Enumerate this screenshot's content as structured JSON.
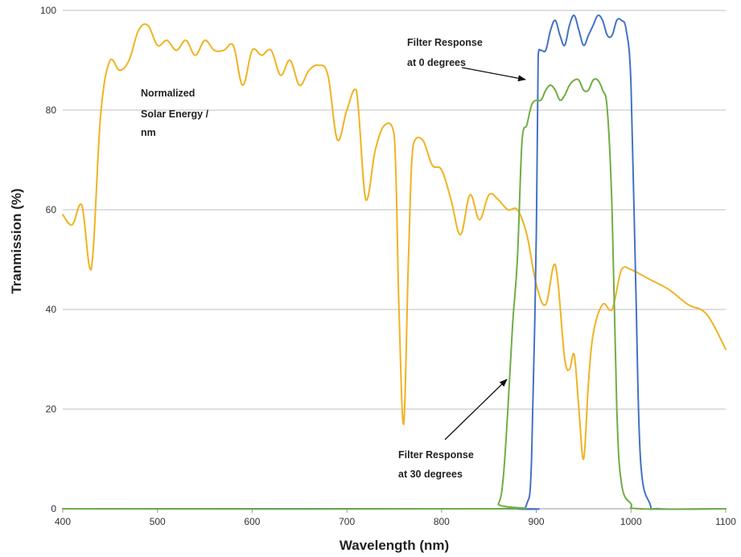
{
  "chart_data": {
    "type": "line",
    "title": "",
    "xlabel": "Wavelength (nm)",
    "ylabel": "Tranmission  (%)",
    "xlim": [
      400,
      1100
    ],
    "ylim": [
      0,
      100
    ],
    "xticks": [
      400,
      500,
      600,
      700,
      800,
      900,
      1000,
      1100
    ],
    "yticks": [
      0,
      20,
      40,
      60,
      80,
      100
    ],
    "grid": "horizontal",
    "legend": "none",
    "series": [
      {
        "key": "solar",
        "color": "#f0b323",
        "x": [
          400,
          410,
          420,
          430,
          440,
          450,
          460,
          470,
          480,
          490,
          500,
          510,
          520,
          530,
          540,
          550,
          560,
          570,
          580,
          590,
          600,
          610,
          620,
          630,
          640,
          650,
          660,
          670,
          680,
          690,
          700,
          710,
          720,
          730,
          740,
          750,
          755,
          760,
          765,
          770,
          780,
          790,
          800,
          810,
          820,
          830,
          840,
          850,
          860,
          870,
          880,
          890,
          900,
          910,
          920,
          930,
          935,
          940,
          945,
          950,
          955,
          960,
          970,
          980,
          990,
          1000,
          1020,
          1040,
          1060,
          1080,
          1100
        ],
        "y": [
          59,
          57,
          61,
          48,
          79,
          90,
          88,
          90,
          96,
          97,
          93,
          94,
          92,
          94,
          91,
          94,
          92,
          92,
          93,
          85,
          92,
          91,
          92,
          87,
          90,
          85,
          88,
          89,
          87,
          74,
          80,
          84,
          62,
          72,
          77,
          75,
          40,
          17,
          50,
          73,
          74,
          69,
          68,
          62,
          55,
          63,
          58,
          63,
          62,
          60,
          60,
          55,
          45,
          41,
          49,
          30,
          28,
          31,
          20,
          10,
          25,
          35,
          41,
          40,
          48,
          48,
          46,
          44,
          41,
          39,
          32
        ]
      },
      {
        "key": "filter0",
        "color": "#4472c4",
        "x": [
          400,
          860,
          880,
          890,
          895,
          900,
          902,
          905,
          910,
          915,
          920,
          925,
          930,
          935,
          940,
          945,
          950,
          955,
          960,
          965,
          970,
          975,
          980,
          985,
          990,
          995,
          1000,
          1005,
          1010,
          1020,
          1030,
          1100
        ],
        "y": [
          0,
          0,
          0,
          1,
          10,
          55,
          91,
          92,
          92,
          96,
          98,
          95,
          93,
          97,
          99,
          96,
          93,
          95,
          97,
          99,
          98,
          95,
          95,
          98,
          98,
          96,
          85,
          45,
          10,
          1,
          0,
          0
        ],
        "annotation": {
          "line1": "Filter Response",
          "line2": "at 0 degrees"
        }
      },
      {
        "key": "filter30",
        "color": "#70ad47",
        "x": [
          400,
          850,
          860,
          865,
          870,
          875,
          880,
          885,
          890,
          895,
          900,
          905,
          910,
          915,
          920,
          925,
          930,
          935,
          940,
          945,
          950,
          955,
          960,
          965,
          970,
          975,
          980,
          985,
          990,
          1000,
          1010,
          1100
        ],
        "y": [
          0,
          0,
          1,
          6,
          20,
          37,
          50,
          74,
          77,
          81,
          82,
          82,
          84,
          85,
          84,
          82,
          83,
          85,
          86,
          86,
          84,
          84,
          86,
          86,
          84,
          80,
          60,
          20,
          5,
          1,
          0,
          0
        ],
        "annotation": {
          "line1": "Filter Response",
          "line2": "at 30 degrees"
        }
      }
    ],
    "annotations": [
      {
        "key": "solar",
        "lines": [
          "Normalized",
          "Solar Energy /",
          "nm"
        ]
      }
    ]
  }
}
